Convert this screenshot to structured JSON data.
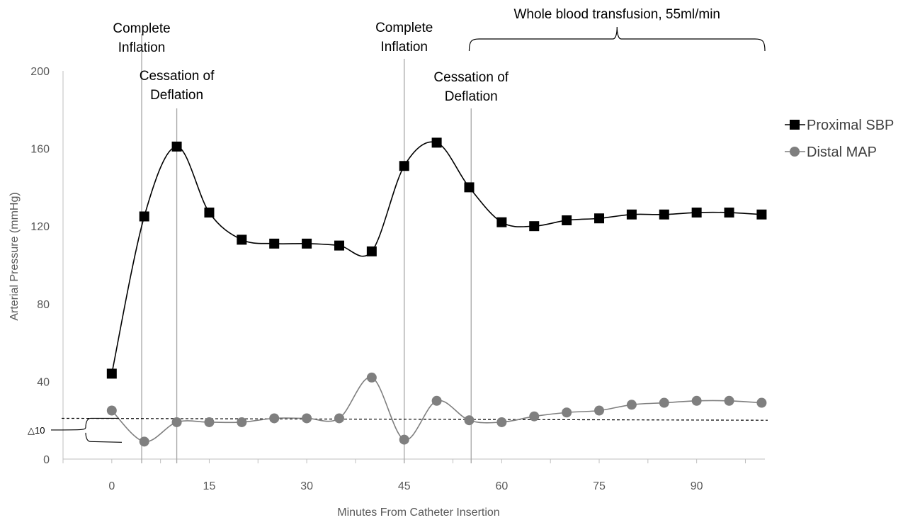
{
  "chart_data": {
    "type": "line",
    "title": "",
    "xlabel": "Minutes From Catheter Insertion",
    "ylabel": "Arterial Pressure (mmHg)",
    "xlim": [
      -7.5,
      100.5
    ],
    "ylim": [
      0,
      200
    ],
    "x_ticks": [
      "0",
      "15",
      "30",
      "45",
      "60",
      "75",
      "90"
    ],
    "y_ticks": [
      "0",
      "40",
      "80",
      "120",
      "160",
      "200"
    ],
    "grid": false,
    "legend_position": "right",
    "x": [
      0,
      5,
      10,
      15,
      20,
      25,
      30,
      35,
      40,
      45,
      50,
      55,
      60,
      65,
      70,
      75,
      80,
      85,
      90,
      95,
      100
    ],
    "series": [
      {
        "name": "Proximal SBP",
        "marker": "square",
        "color": "#000000",
        "values": [
          44,
          125,
          161,
          127,
          113,
          111,
          111,
          110,
          107,
          151,
          163,
          140,
          122,
          120,
          123,
          124,
          126,
          126,
          127,
          127,
          126
        ]
      },
      {
        "name": "Distal MAP",
        "marker": "circle",
        "color": "#7f7f7f",
        "values": [
          25,
          9,
          19,
          19,
          19,
          21,
          21,
          21,
          42,
          10,
          30,
          20,
          19,
          22,
          24,
          25,
          28,
          29,
          30,
          30,
          29
        ]
      }
    ],
    "reference_line": {
      "style": "dashed",
      "y_start": 21,
      "y_end": 20
    },
    "delta_label": "△10",
    "vertical_markers": [
      {
        "x": 4.6,
        "label_lines": [
          "Complete",
          "Inflation"
        ]
      },
      {
        "x": 10,
        "label_lines": [
          "Cessation of",
          "Deflation"
        ]
      },
      {
        "x": 45,
        "label_lines": [
          "Complete",
          "Inflation"
        ]
      },
      {
        "x": 55.3,
        "label_lines": [
          "Cessation of",
          "Deflation"
        ]
      }
    ],
    "bracket": {
      "x_start": 55,
      "x_end": 100.5,
      "label": "Whole blood transfusion, 55ml/min"
    }
  },
  "colors": {
    "axis": "#bfbfbf",
    "tick_text": "#595959",
    "marker_line": "#a6a6a6",
    "sbp": "#000000",
    "map": "#7f7f7f"
  }
}
